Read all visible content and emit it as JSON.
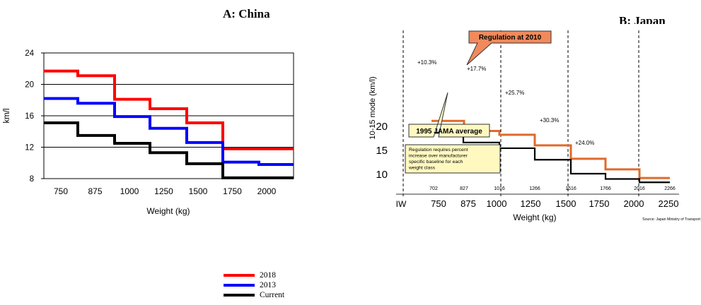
{
  "panels": {
    "a_title": "A: China",
    "b_title": "B: Japan"
  },
  "legend": {
    "items": [
      {
        "label": "2018",
        "color": "#ff0000"
      },
      {
        "label": "2013",
        "color": "#0000ff"
      },
      {
        "label": "Current",
        "color": "#000000"
      }
    ]
  },
  "chart_data": [
    {
      "type": "line",
      "title": "A: China",
      "xlabel": "Weight (kg)",
      "ylabel": "km/l",
      "ylim": [
        8,
        24
      ],
      "yticks": [
        8,
        12,
        16,
        20,
        24
      ],
      "x_tick_labels": [
        "750",
        "875",
        "1000",
        "1250",
        "1500",
        "1750",
        "2000"
      ],
      "grid": "horizontal",
      "colors": {
        "2018": "#ff0000",
        "2013": "#0000ff",
        "Current": "#000000"
      },
      "step_boundaries": [
        "<825",
        "825-950",
        "950-1150",
        "1150-1400",
        "1400-1650",
        "1650-1900",
        ">1900"
      ],
      "series": [
        {
          "name": "2018",
          "values": [
            21.7,
            21.1,
            18.1,
            16.9,
            15.1,
            11.8,
            11.8
          ]
        },
        {
          "name": "2013",
          "values": [
            18.2,
            17.6,
            15.9,
            14.4,
            12.6,
            10.1,
            9.8
          ]
        },
        {
          "name": "Current",
          "values": [
            15.1,
            13.5,
            12.5,
            11.3,
            9.9,
            8.1,
            8.1
          ]
        }
      ]
    },
    {
      "type": "line",
      "title": "B: Japan",
      "xlabel": "Weight (kg)",
      "ylabel": "10-15 mode (km/l)",
      "yticks": [
        10,
        15,
        20
      ],
      "x_tick_labels": [
        "IW",
        "750",
        "875",
        "1000",
        "1250",
        "1500",
        "1750",
        "2000",
        "2250"
      ],
      "x_boundary_labels": [
        "702",
        "827",
        "1016",
        "1266",
        "1516",
        "1766",
        "2016",
        "2266"
      ],
      "colors": {
        "regulation": "#e06a2a",
        "jama": "#000000"
      },
      "annotations": {
        "regulation_label": "Regulation at 2010",
        "jama_label": "1995 JAMA average",
        "note": "Regulation requires percent increase over manufacturer specific baseline for each weight class",
        "source": "Source: Japan Ministry of Transport",
        "percent_labels": [
          "+10.3%",
          "+17.7%",
          "+25.7%",
          "+30.3%",
          "+24.0%"
        ]
      },
      "series": [
        {
          "name": "Regulation at 2010",
          "values": [
            21.0,
            18.9,
            18.1,
            15.9,
            13.1,
            10.9,
            9.1,
            8.5
          ]
        },
        {
          "name": "1995 JAMA average",
          "values": [
            18.5,
            16.5,
            15.3,
            12.9,
            10.0,
            8.9,
            8.2,
            7.6
          ]
        }
      ]
    }
  ]
}
